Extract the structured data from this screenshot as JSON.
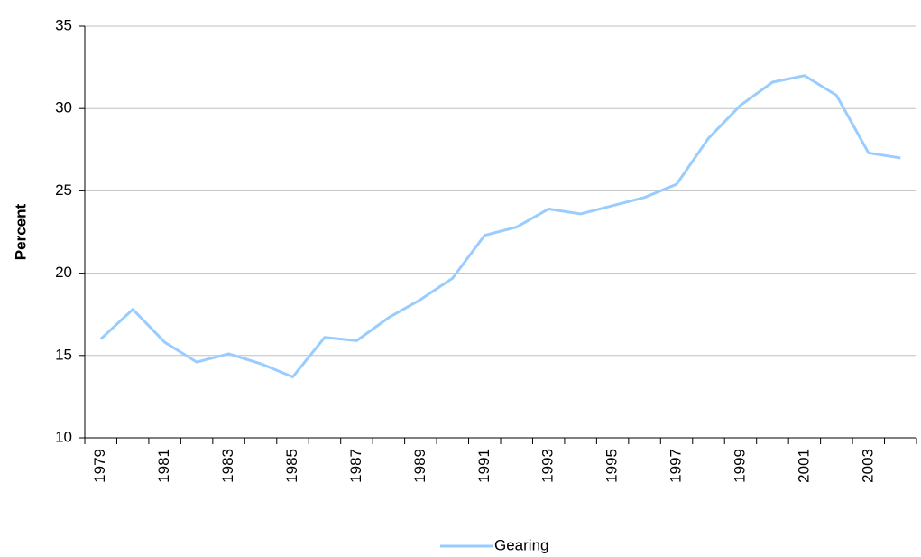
{
  "chart_data": {
    "type": "line",
    "y_label": "Percent",
    "categories": [
      "1979",
      null,
      "1981",
      null,
      "1983",
      null,
      "1985",
      null,
      "1987",
      null,
      "1989",
      null,
      "1991",
      null,
      "1993",
      null,
      "1995",
      null,
      "1997",
      null,
      "1999",
      null,
      "2001",
      null,
      "2003",
      null
    ],
    "series": [
      {
        "name": "Gearing",
        "color": "#99ccff",
        "values": [
          16.0,
          17.8,
          15.8,
          14.6,
          15.1,
          14.5,
          13.7,
          16.1,
          15.9,
          17.3,
          18.4,
          19.7,
          22.3,
          22.8,
          23.9,
          23.6,
          24.1,
          24.6,
          25.4,
          28.2,
          30.2,
          31.6,
          32.0,
          30.8,
          27.3,
          27.0
        ]
      }
    ],
    "ylim": [
      10,
      35
    ],
    "yticks": [
      10,
      15,
      20,
      25,
      30,
      35
    ],
    "grid": true,
    "legend": "bottom"
  }
}
